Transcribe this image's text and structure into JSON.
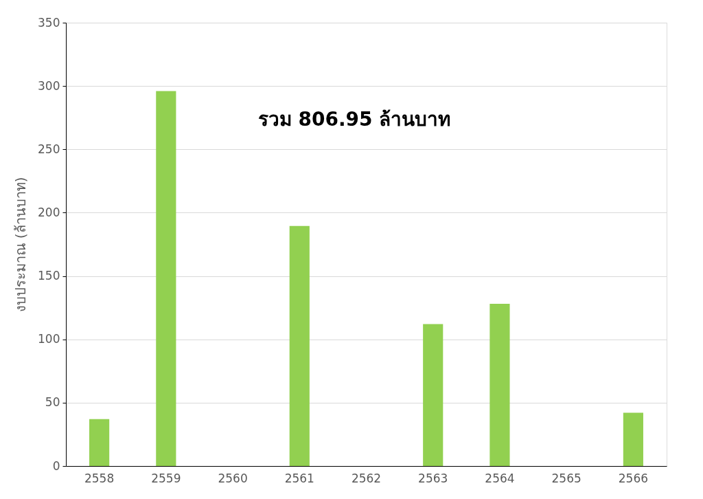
{
  "chart_data": {
    "type": "bar",
    "ylabel": "งบประมาณ (ล้านบาท)",
    "categories": [
      "2558",
      "2559",
      "2560",
      "2561",
      "2562",
      "2563",
      "2564",
      "2565",
      "2566"
    ],
    "values": [
      37,
      296,
      null,
      189.5,
      null,
      112,
      128,
      null,
      42
    ],
    "color": "#92d050",
    "ylim": [
      0,
      350
    ],
    "yticks": [
      0,
      50,
      100,
      150,
      200,
      250,
      300,
      350
    ],
    "grid": "y",
    "annotations": [
      "รวม 806.95 ล้านบาท"
    ]
  }
}
